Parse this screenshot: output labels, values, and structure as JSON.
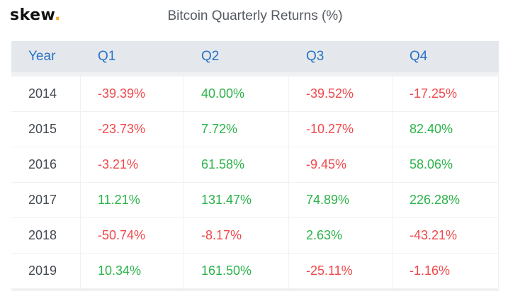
{
  "brand": {
    "logo_text": "skew",
    "logo_dot": ".",
    "dot_color": "#f5a623"
  },
  "chart_data": {
    "type": "table",
    "title": "Bitcoin Quarterly Returns (%)",
    "columns": [
      "Year",
      "Q1",
      "Q2",
      "Q3",
      "Q4"
    ],
    "rows": [
      [
        "2014",
        "-39.39%",
        "40.00%",
        "-39.52%",
        "-17.25%"
      ],
      [
        "2015",
        "-23.73%",
        "7.72%",
        "-10.27%",
        "82.40%"
      ],
      [
        "2016",
        "-3.21%",
        "61.58%",
        "-9.45%",
        "58.06%"
      ],
      [
        "2017",
        "11.21%",
        "131.47%",
        "74.89%",
        "226.28%"
      ],
      [
        "2018",
        "-50.74%",
        "-8.17%",
        "2.63%",
        "-43.21%"
      ],
      [
        "2019",
        "10.34%",
        "161.50%",
        "-25.11%",
        "-1.16%"
      ]
    ],
    "colors": {
      "positive": "#2cb34a",
      "negative": "#f0484b",
      "header_text": "#2a72c3",
      "year_text": "#444a52"
    }
  }
}
